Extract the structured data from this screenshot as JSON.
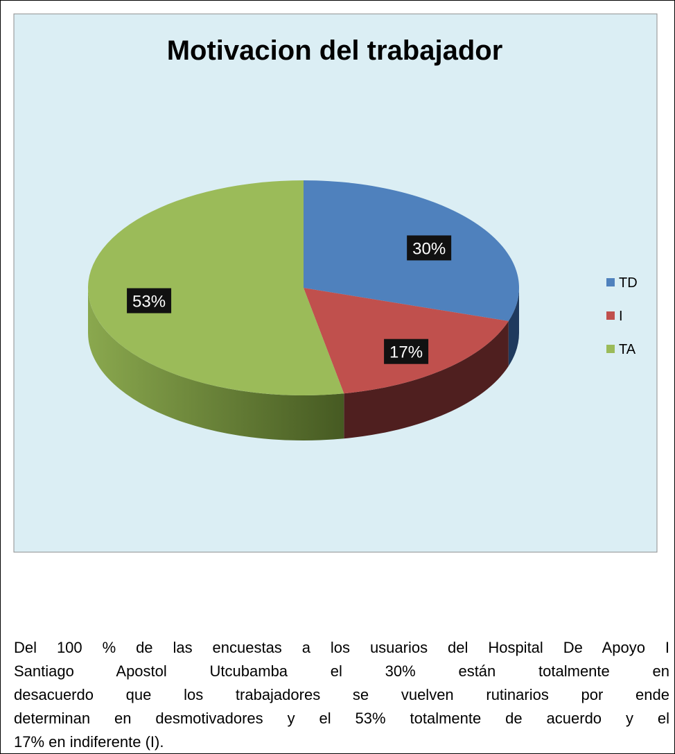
{
  "chart_data": {
    "type": "pie",
    "title": "Motivacion del trabajador",
    "categories": [
      "TD",
      "I",
      "TA"
    ],
    "values": [
      30,
      17,
      53
    ],
    "value_labels": [
      "30%",
      "17%",
      "53%"
    ],
    "colors": [
      "#4f81bd",
      "#c0504d",
      "#9bbb59"
    ],
    "side_colors": [
      "#1f3a5e",
      "#4f1f1f",
      "#5a6e2c"
    ],
    "legend": "right"
  },
  "paragraph": [
    "Del 100 % de las encuestas a los usuarios del Hospital De Apoyo I",
    "Santiago Apostol Utcubamba el 30% están totalmente en",
    "desacuerdo que los trabajadores se vuelven rutinarios por ende",
    "determinan en desmotivadores y el 53% totalmente de acuerdo y el",
    "17% en indiferente (I)."
  ]
}
